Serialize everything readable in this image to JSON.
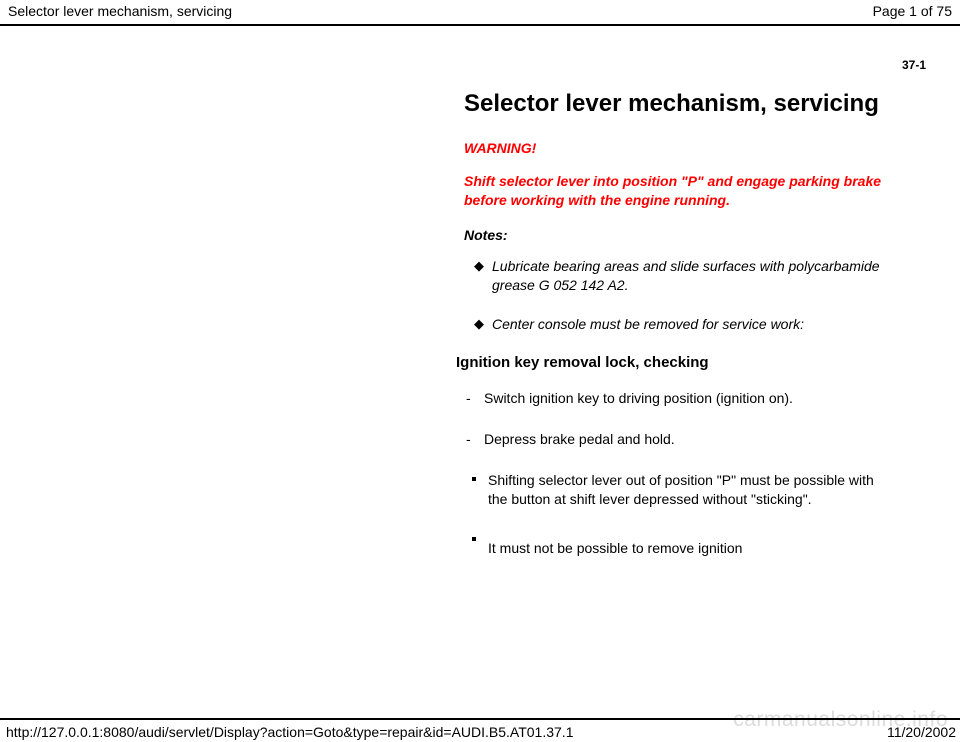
{
  "header": {
    "title": "Selector lever mechanism, servicing",
    "page_indicator": "Page 1 of 75"
  },
  "section_number": "37-1",
  "doc_title": "Selector lever mechanism, servicing",
  "warning": {
    "label": "WARNING!",
    "text": "Shift selector lever into position \"P\" and engage parking brake before working with the engine running."
  },
  "notes_label": "Notes:",
  "notes": [
    "Lubricate bearing areas and slide surfaces with polycarbamide grease G 052 142 A2.",
    "Center console must be removed for service work:"
  ],
  "sub_heading": "Ignition key removal lock, checking",
  "steps_dash": [
    "Switch ignition key to driving position (ignition on).",
    "Depress brake pedal and hold."
  ],
  "steps_dot": [
    "Shifting selector lever out of position \"P\" must be possible with the button at shift lever depressed without \"sticking\"."
  ],
  "steps_dot_tail": "It must not be possible to remove ignition",
  "footer": {
    "url": "http://127.0.0.1:8080/audi/servlet/Display?action=Goto&type=repair&id=AUDI.B5.AT01.37.1",
    "date": "11/20/2002"
  },
  "watermark": "carmanualsonline.info",
  "colors": {
    "text": "#000000",
    "warning": "#ff0000",
    "watermark": "#dcdcdc",
    "rule": "#000000",
    "background": "#ffffff"
  }
}
